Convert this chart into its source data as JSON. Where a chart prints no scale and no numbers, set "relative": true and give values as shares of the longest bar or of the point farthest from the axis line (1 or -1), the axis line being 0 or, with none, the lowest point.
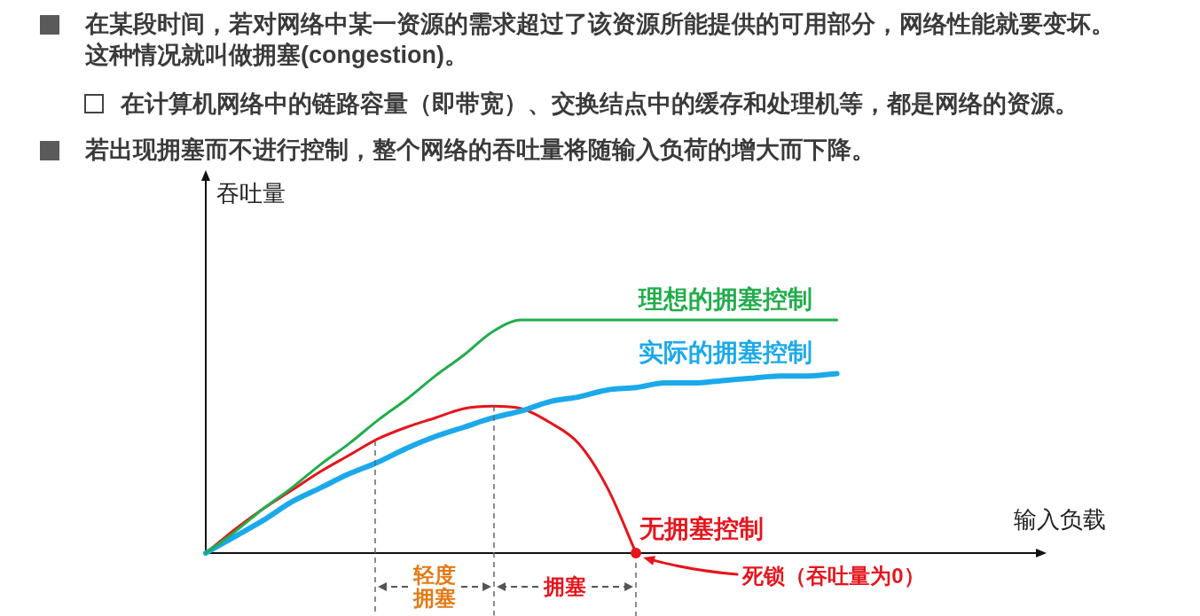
{
  "chart_data": {
    "type": "line",
    "relative": true,
    "tick_labels": false,
    "xlabel": "输入负载",
    "ylabel": "吞吐量",
    "categories": [
      null,
      null,
      null,
      null,
      null,
      null,
      null,
      null,
      null,
      null,
      null,
      null,
      null,
      null,
      null,
      null,
      null,
      null,
      null,
      null,
      null,
      null,
      null,
      null,
      null,
      null,
      null,
      null,
      null,
      null
    ],
    "series": [
      {
        "name": "理想的拥塞控制",
        "color": "#22ac4c",
        "values": [
          0,
          0.09,
          0.19,
          0.28,
          0.38,
          0.47,
          0.57,
          0.66,
          0.76,
          0.85,
          0.95,
          1,
          1,
          1,
          1,
          1,
          1,
          1,
          1,
          1,
          1,
          1,
          1,
          null,
          null,
          null,
          null,
          null,
          null,
          null
        ]
      },
      {
        "name": "实际的拥塞控制",
        "color": "#1ba9ea",
        "values": [
          0,
          0.07,
          0.14,
          0.22,
          0.28,
          0.34,
          0.39,
          0.45,
          0.5,
          0.54,
          0.58,
          0.61,
          0.65,
          0.67,
          0.7,
          0.71,
          0.73,
          0.73,
          0.74,
          0.75,
          0.76,
          0.76,
          0.77,
          null,
          null,
          null,
          null,
          null,
          null,
          null
        ]
      },
      {
        "name": "无拥塞控制",
        "color": "#e6141c",
        "values": [
          0,
          0.1,
          0.19,
          0.27,
          0.35,
          0.42,
          0.49,
          0.54,
          0.58,
          0.62,
          0.63,
          0.62,
          0.56,
          0.47,
          0.28,
          0,
          null,
          null,
          null,
          null,
          null,
          null,
          null,
          null,
          null,
          null,
          null,
          null,
          null,
          null
        ]
      }
    ],
    "annotations": [
      "在某段时间，若对网络中某一资源的需求超过了该资源所能提供的可用部分，网络性能就要变坏。这种情况就叫做拥塞(congestion)。",
      "在计算机网络中的链路容量（即带宽）、交换结点中的缓存和处理机等，都是网络的资源。",
      "若出现拥塞而不进行控制，整个网络的吞吐量将随输入负荷的增大而下降。",
      "轻度拥塞",
      "拥塞",
      "死锁（吞吐量为0）"
    ]
  }
}
